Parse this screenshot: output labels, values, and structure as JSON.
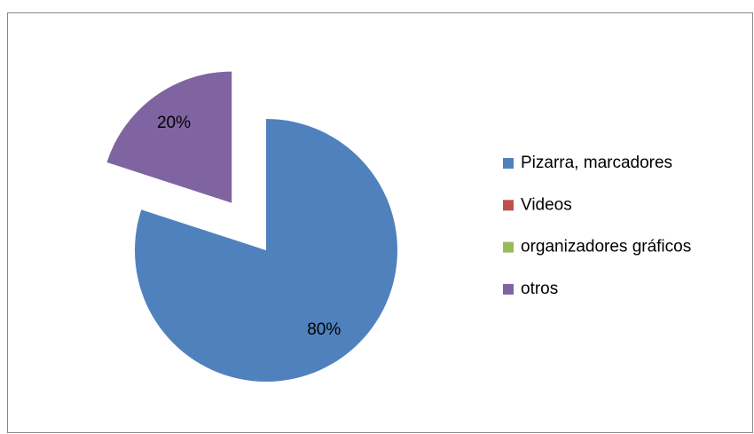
{
  "chart_data": {
    "type": "pie",
    "categories": [
      "Pizarra, marcadores",
      "Videos",
      "organizadores gráficos",
      "otros"
    ],
    "values": [
      80,
      0,
      0,
      20
    ],
    "value_labels": [
      "80%",
      null,
      null,
      "20%"
    ],
    "colors": [
      "#4f81bd",
      "#c0504d",
      "#9bbb59",
      "#8064a2"
    ],
    "legend": "right"
  }
}
